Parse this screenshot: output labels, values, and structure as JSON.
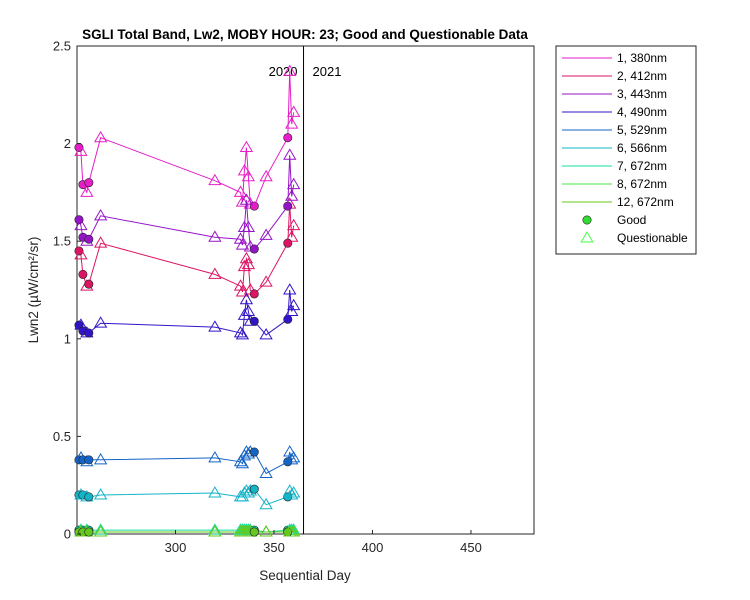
{
  "chart_data": {
    "type": "line",
    "title": "SGLI Total Band, Lw2, MOBY HOUR: 23;  Good and Questionable Data",
    "xlabel": "Sequential Day",
    "ylabel": "Lwn2 (µW/cm²/sr)",
    "xlim": [
      250,
      482
    ],
    "ylim": [
      0,
      2.5
    ],
    "xticks": [
      300,
      350,
      400,
      450
    ],
    "yticks": [
      0,
      0.5,
      1,
      1.5,
      2,
      2.5
    ],
    "year_divider": {
      "x": 365,
      "left_label": "2020",
      "right_label": "2021"
    },
    "x": [
      251,
      252,
      253,
      255,
      256,
      262,
      320,
      333,
      334,
      335,
      336,
      337,
      338,
      340,
      346,
      357,
      358,
      359,
      360
    ],
    "series": [
      {
        "name": "1, 380nm",
        "color": "#e61ec8",
        "values": [
          1.98,
          1.96,
          1.79,
          1.75,
          1.8,
          2.03,
          1.81,
          1.75,
          1.7,
          1.86,
          1.98,
          1.83,
          1.69,
          1.68,
          1.83,
          2.03,
          2.37,
          2.1,
          2.16
        ]
      },
      {
        "name": "2, 412nm",
        "color": "#dc1464",
        "values": [
          1.45,
          1.43,
          1.33,
          1.27,
          1.28,
          1.49,
          1.33,
          1.27,
          1.24,
          1.37,
          1.41,
          1.38,
          1.25,
          1.23,
          1.29,
          1.49,
          1.69,
          1.52,
          1.58
        ]
      },
      {
        "name": "3, 443nm",
        "color": "#9614c8",
        "values": [
          1.61,
          1.58,
          1.52,
          1.5,
          1.51,
          1.63,
          1.52,
          1.51,
          1.48,
          1.57,
          1.71,
          1.57,
          1.47,
          1.46,
          1.53,
          1.68,
          1.94,
          1.73,
          1.79
        ]
      },
      {
        "name": "4, 490nm",
        "color": "#3214c8",
        "values": [
          1.07,
          1.07,
          1.04,
          1.03,
          1.03,
          1.08,
          1.06,
          1.03,
          1.02,
          1.12,
          1.2,
          1.14,
          1.09,
          1.09,
          1.02,
          1.1,
          1.25,
          1.14,
          1.17
        ]
      },
      {
        "name": "5, 529nm",
        "color": "#1464c8",
        "values": [
          0.38,
          0.39,
          0.38,
          0.37,
          0.38,
          0.38,
          0.39,
          0.37,
          0.36,
          0.4,
          0.42,
          0.41,
          0.42,
          0.42,
          0.31,
          0.37,
          0.42,
          0.38,
          0.39
        ]
      },
      {
        "name": "6, 566nm",
        "color": "#14b4c8",
        "values": [
          0.2,
          0.2,
          0.2,
          0.19,
          0.19,
          0.2,
          0.21,
          0.19,
          0.19,
          0.21,
          0.22,
          0.21,
          0.22,
          0.23,
          0.15,
          0.19,
          0.22,
          0.2,
          0.21
        ]
      },
      {
        "name": "7, 672nm",
        "color": "#14dca0",
        "values": [
          0.02,
          0.02,
          0.02,
          0.02,
          0.02,
          0.02,
          0.02,
          0.02,
          0.02,
          0.02,
          0.02,
          0.02,
          0.02,
          0.02,
          0.01,
          0.02,
          0.02,
          0.02,
          0.02
        ]
      },
      {
        "name": "8, 672nm",
        "color": "#46e646",
        "values": [
          0.01,
          0.01,
          0.01,
          0.01,
          0.01,
          0.01,
          0.01,
          0.01,
          0.01,
          0.01,
          0.01,
          0.01,
          0.01,
          0.01,
          0.01,
          0.01,
          0.01,
          0.01,
          0.01
        ]
      },
      {
        "name": "12, 672nm",
        "color": "#64c81e",
        "values": [
          0.01,
          0.01,
          0.01,
          0.01,
          0.01,
          0.01,
          0.01,
          0.01,
          0.01,
          0.01,
          0.01,
          0.01,
          0.01,
          0.01,
          0.01,
          0.01,
          0.01,
          0.01,
          0.01
        ]
      }
    ],
    "good_indices": [
      0,
      2,
      4,
      13,
      15
    ],
    "good_marker": {
      "label": "Good",
      "color": "#32dc32"
    },
    "questionable_marker": {
      "label": "Questionable",
      "color": "#46ff46"
    },
    "legend_position": "outside-top-right",
    "grid": false
  }
}
